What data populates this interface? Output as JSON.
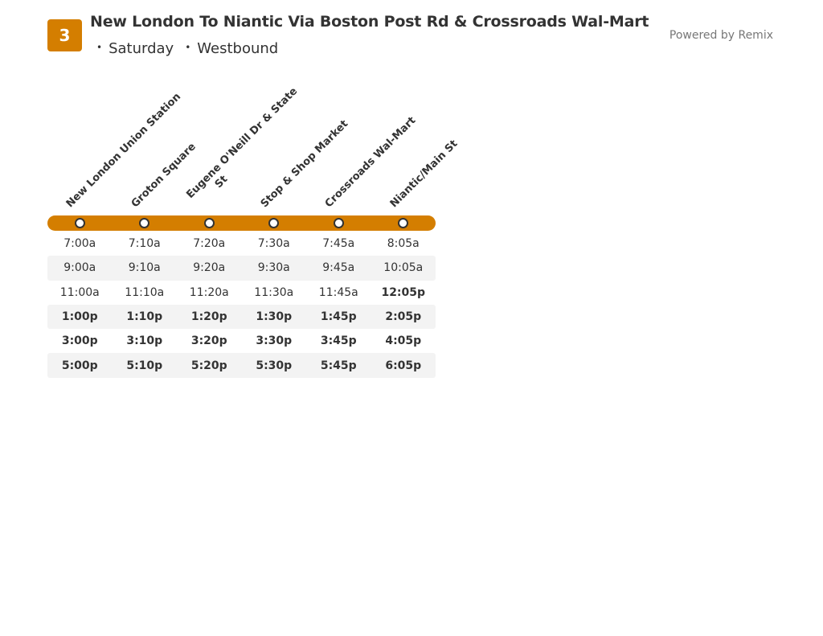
{
  "header": {
    "route_number": "3",
    "title": "New London To Niantic Via Boston Post Rd & Crossroads Wal-Mart",
    "day": "Saturday",
    "direction": "Westbound",
    "powered_by": "Powered by Remix"
  },
  "colors": {
    "accent": "#D47E00",
    "row_alt": "#F3F3F3",
    "text": "#333333"
  },
  "stops": [
    {
      "label": "New London Union Station"
    },
    {
      "label": "Groton Square"
    },
    {
      "label": "Eugene O'Neill Dr & State",
      "label2": "St"
    },
    {
      "label": "Stop & Shop Market"
    },
    {
      "label": "Crossroads Wal-Mart"
    },
    {
      "label": "Niantic/Main St"
    }
  ],
  "trips": [
    [
      "7:00a",
      "7:10a",
      "7:20a",
      "7:30a",
      "7:45a",
      "8:05a"
    ],
    [
      "9:00a",
      "9:10a",
      "9:20a",
      "9:30a",
      "9:45a",
      "10:05a"
    ],
    [
      "11:00a",
      "11:10a",
      "11:20a",
      "11:30a",
      "11:45a",
      "12:05p"
    ],
    [
      "1:00p",
      "1:10p",
      "1:20p",
      "1:30p",
      "1:45p",
      "2:05p"
    ],
    [
      "3:00p",
      "3:10p",
      "3:20p",
      "3:30p",
      "3:45p",
      "4:05p"
    ],
    [
      "5:00p",
      "5:10p",
      "5:20p",
      "5:30p",
      "5:45p",
      "6:05p"
    ]
  ]
}
